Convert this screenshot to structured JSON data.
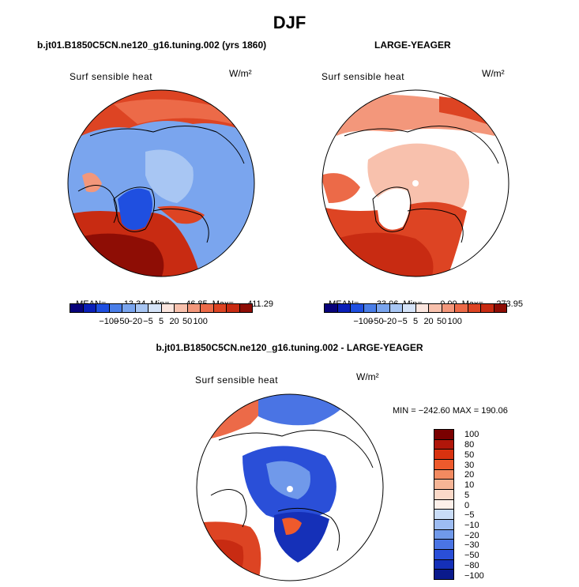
{
  "season": "DJF",
  "colors": [
    "#08027a",
    "#0a1fb8",
    "#1f4fe0",
    "#4a7ee8",
    "#7aa5ee",
    "#a8c6f3",
    "#d5e3f8",
    "#fbe6df",
    "#f8c1ad",
    "#f3977b",
    "#ec6a48",
    "#dd4423",
    "#c82b12",
    "#8e0d05"
  ],
  "panels": [
    {
      "heading": "b.jt01.B1850C5CN.ne120_g16.tuning.002 (yrs 1860)",
      "field": "Surf sensible heat",
      "units": "W/m²",
      "stats": {
        "mean_label": "MEAN=",
        "mean": "13.34",
        "min_label": "Min=",
        "min": "-46.85",
        "max_label": "Max=",
        "max": "411.29"
      },
      "ticks": [
        "−100",
        "−50",
        "−20",
        "−5",
        "5",
        "20",
        "50",
        "100"
      ]
    },
    {
      "heading": "LARGE-YEAGER",
      "field": "Surf sensible heat",
      "units": "W/m²",
      "stats": {
        "mean_label": "MEAN=",
        "mean": "33.06",
        "min_label": "Min=",
        "min": "0.00",
        "max_label": "Max=",
        "max": "273.95"
      },
      "ticks": [
        "−100",
        "−50",
        "−20",
        "−5",
        "5",
        "20",
        "50",
        "100"
      ]
    },
    {
      "heading": "b.jt01.B1850C5CN.ne120_g16.tuning.002 - LARGE-YEAGER",
      "field": "Surf sensible heat",
      "units": "W/m²",
      "minmax": "MIN = −242.60 MAX = 190.06",
      "vcolors": [
        "#7a0000",
        "#b0160a",
        "#d8320f",
        "#ee5a2c",
        "#f28a60",
        "#f6b596",
        "#fbd9c8",
        "#fdf0ea",
        "#c9dcf7",
        "#9dbcf2",
        "#7099ea",
        "#4a74e4",
        "#2a4fd8",
        "#1530b8",
        "#0a1a8c"
      ],
      "vticks": [
        "100",
        "80",
        "50",
        "30",
        "20",
        "10",
        "5",
        "0",
        "−5",
        "−10",
        "−20",
        "−30",
        "−50",
        "−80",
        "−100"
      ]
    }
  ]
}
